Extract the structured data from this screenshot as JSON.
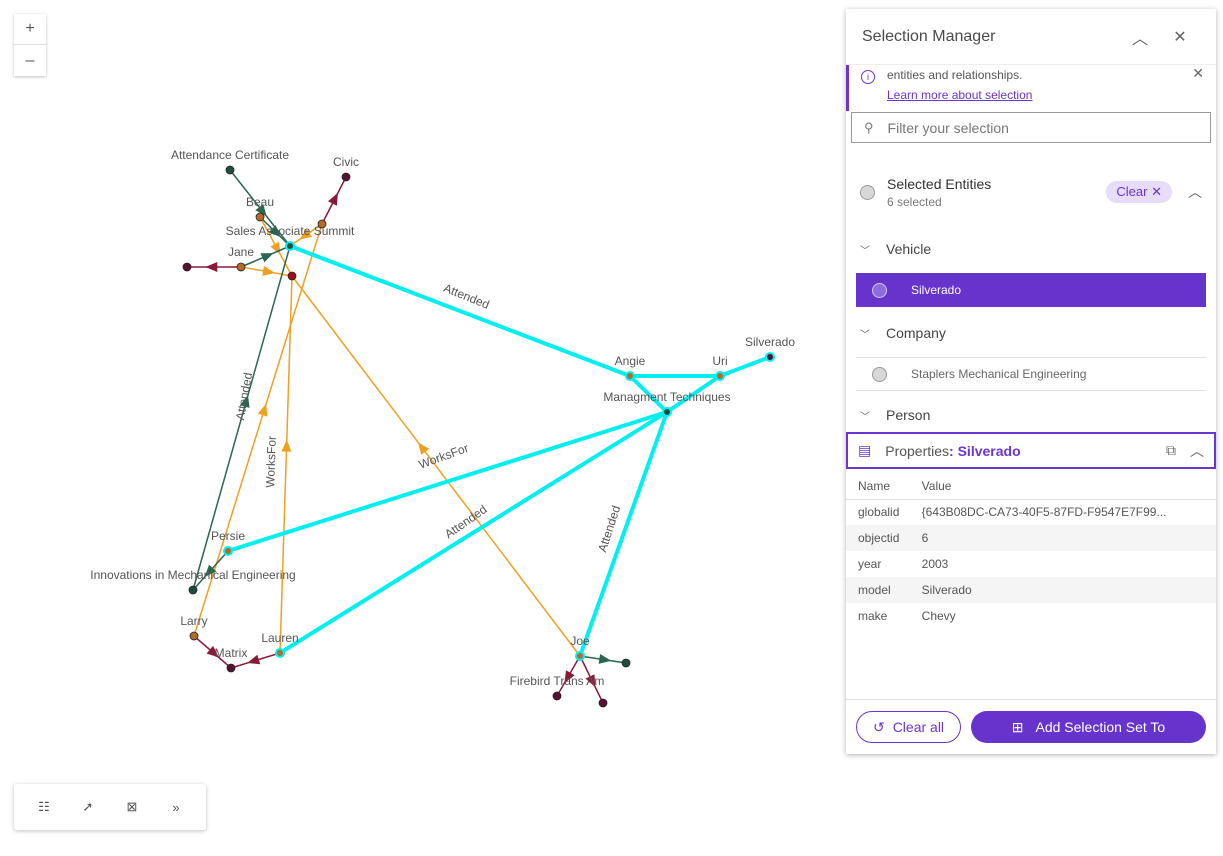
{
  "graph": {
    "nodes": [
      {
        "id": "cert",
        "label": "Attendance Certificate",
        "color": "#1e4d40"
      },
      {
        "id": "civic",
        "label": "Civic",
        "color": "#5a1030"
      },
      {
        "id": "beau",
        "label": "Beau",
        "color": "#b36a2a"
      },
      {
        "id": "summit",
        "label": "Sales Associate Summit",
        "color": "#1e4d40"
      },
      {
        "id": "n1",
        "label": "",
        "color": "#b36a2a"
      },
      {
        "id": "jane",
        "label": "Jane",
        "color": "#b36a2a"
      },
      {
        "id": "n2",
        "label": "",
        "color": "#5a1030"
      },
      {
        "id": "n3",
        "label": "",
        "color": "#a01010"
      },
      {
        "id": "angie",
        "label": "Angie",
        "color": "#b36a2a"
      },
      {
        "id": "mgmt",
        "label": "Managment Techniques",
        "color": "#1e4d40"
      },
      {
        "id": "uri",
        "label": "Uri",
        "color": "#b36a2a"
      },
      {
        "id": "silverado",
        "label": "Silverado",
        "color": "#5a1030"
      },
      {
        "id": "persie",
        "label": "Persie",
        "color": "#b36a2a"
      },
      {
        "id": "innov",
        "label": "Innovations in Mechanical Engineering",
        "color": "#1e4d40"
      },
      {
        "id": "larry",
        "label": "Larry",
        "color": "#b36a2a"
      },
      {
        "id": "matrix",
        "label": "Matrix",
        "color": "#5a1030"
      },
      {
        "id": "lauren",
        "label": "Lauren",
        "color": "#b36a2a"
      },
      {
        "id": "joe",
        "label": "Joe",
        "color": "#b36a2a"
      },
      {
        "id": "firebird",
        "label": "Firebird Trans Am",
        "color": "#5a1030"
      },
      {
        "id": "n4",
        "label": "",
        "color": "#5a1030"
      },
      {
        "id": "n5",
        "label": "",
        "color": "#1e4d40"
      }
    ],
    "edge_labels": [
      "Attended",
      "Attended",
      "WorksFor",
      "WorksFor",
      "Attended",
      "Attended"
    ],
    "colors": {
      "selected": "#00f0f0",
      "attended": "#2a6650",
      "worksfor": "#f0a020",
      "owns": "#8a1a3a"
    }
  },
  "zoom": {
    "in": "+",
    "out": "–"
  },
  "toolbar": {
    "items": [
      {
        "icon": "list-icon",
        "g": "☷"
      },
      {
        "icon": "pointer-icon",
        "g": "➚"
      },
      {
        "icon": "layout-icon",
        "g": "⊠"
      },
      {
        "icon": "expand-icon",
        "g": "»"
      }
    ]
  },
  "panel": {
    "title": "Selection Manager",
    "notice": {
      "text": "entities and relationships.",
      "link": "Learn more about selection"
    },
    "filter_placeholder": "Filter your selection",
    "selected": {
      "title": "Selected Entities",
      "count": "6 selected",
      "clear": "Clear"
    },
    "groups": [
      {
        "label": "Vehicle",
        "items": [
          "Silverado"
        ]
      },
      {
        "label": "Company",
        "items": [
          "Staplers Mechanical Engineering"
        ]
      },
      {
        "label": "Person",
        "items": []
      }
    ],
    "properties": {
      "prefix": "Properties",
      "name": ": Silverado",
      "columns": [
        "Name",
        "Value"
      ],
      "rows": [
        [
          "globalid",
          "{643B08DC-CA73-40F5-87FD-F9547E7F99..."
        ],
        [
          "objectid",
          "6"
        ],
        [
          "year",
          "2003"
        ],
        [
          "model",
          "Silverado"
        ],
        [
          "make",
          "Chevy"
        ]
      ]
    },
    "clear_all": "Clear all",
    "add_set": "Add Selection Set To",
    "accent": "#6633cc"
  }
}
